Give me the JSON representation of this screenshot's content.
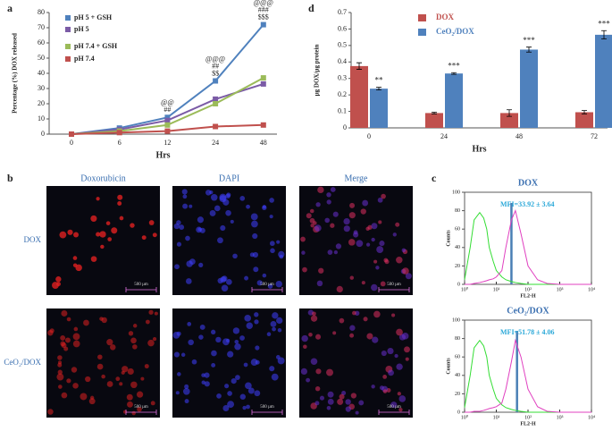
{
  "chart_data": [
    {
      "type": "line",
      "x_label": "Hrs",
      "y_label": "Percentage (%) DOX released",
      "categories": [
        "0",
        "6",
        "12",
        "24",
        "48"
      ],
      "series": [
        {
          "name": "pH 5 + GSH",
          "color": "#4f81bd",
          "values": [
            0,
            4,
            11,
            35,
            72
          ]
        },
        {
          "name": "pH 5",
          "color": "#7b5ba6",
          "values": [
            0,
            3,
            9,
            23,
            33
          ]
        },
        {
          "name": "pH  7.4 + GSH",
          "color": "#9bbb59",
          "values": [
            0,
            2,
            6,
            20,
            37
          ]
        },
        {
          "name": "pH 7.4",
          "color": "#c0504d",
          "values": [
            0,
            1,
            2,
            5,
            6
          ]
        }
      ],
      "annotations": [
        null,
        null,
        [
          "@@",
          "##"
        ],
        [
          "@@@",
          "##",
          "$$"
        ],
        [
          "@@@",
          "###",
          "$$$"
        ]
      ],
      "ylim": [
        0,
        80
      ],
      "yticks": [
        0,
        10,
        20,
        30,
        40,
        50,
        60,
        70,
        80
      ],
      "grid": false
    },
    {
      "type": "bar",
      "x_label": "Hrs",
      "y_label": "µg DOX/µg protein",
      "categories": [
        "0",
        "24",
        "48",
        "72"
      ],
      "series": [
        {
          "name": "DOX",
          "color": "#c0504d",
          "values": [
            0.375,
            0.09,
            0.09,
            0.095
          ],
          "errors": [
            0.02,
            0.005,
            0.02,
            0.01
          ]
        },
        {
          "name": "CeO₂/DOX",
          "color": "#4f81bd",
          "values": [
            0.238,
            0.33,
            0.475,
            0.565
          ],
          "errors": [
            0.008,
            0.005,
            0.015,
            0.025
          ]
        }
      ],
      "significance": [
        "**",
        "***",
        "***",
        "***"
      ],
      "ylim": [
        0,
        0.7
      ],
      "yticks": [
        0,
        0.1,
        0.2,
        0.3,
        0.4,
        0.5,
        0.6,
        0.7
      ],
      "grid": false
    },
    {
      "type": "line",
      "title": "DOX",
      "x_label": "FL2-H",
      "y_label": "Counts",
      "xscale": "log",
      "x": [
        1,
        1.5,
        2,
        3,
        4,
        5,
        6,
        8,
        10,
        15,
        20,
        30,
        40,
        60,
        100,
        200,
        400,
        1000,
        10000
      ],
      "series": [
        {
          "color": "#33dd33",
          "values": [
            5,
            40,
            70,
            78,
            72,
            60,
            40,
            25,
            15,
            8,
            5,
            3,
            2,
            1,
            0,
            0,
            0,
            0,
            0
          ]
        },
        {
          "color": "#e040c0",
          "values": [
            0,
            0,
            1,
            2,
            3,
            4,
            5,
            6,
            8,
            15,
            40,
            70,
            80,
            55,
            20,
            5,
            1,
            0,
            0
          ]
        }
      ],
      "marker": 30,
      "annotation": "MFI=33.92 ± 3.64",
      "xlim": [
        1,
        10000
      ],
      "xticks": [
        {
          "value": 1,
          "label": "10⁰"
        },
        {
          "value": 10,
          "label": "10¹"
        },
        {
          "value": 100,
          "label": "10²"
        },
        {
          "value": 1000,
          "label": "10³"
        },
        {
          "value": 10000,
          "label": "10⁴"
        }
      ],
      "ylim": [
        0,
        100
      ],
      "yticks": [
        0,
        20,
        40,
        60,
        80,
        100
      ]
    },
    {
      "type": "line",
      "title": "CeO₂/DOX",
      "x_label": "FL2-H",
      "y_label": "Counts",
      "xscale": "log",
      "x": [
        1,
        1.5,
        2,
        3,
        4,
        5,
        6,
        8,
        10,
        15,
        20,
        30,
        40,
        60,
        100,
        200,
        400,
        1000,
        10000
      ],
      "series": [
        {
          "color": "#33dd33",
          "values": [
            5,
            40,
            70,
            78,
            72,
            60,
            40,
            25,
            15,
            8,
            5,
            3,
            2,
            1,
            0,
            0,
            0,
            0,
            0
          ]
        },
        {
          "color": "#e040c0",
          "values": [
            0,
            0,
            1,
            1,
            2,
            3,
            4,
            5,
            6,
            10,
            25,
            55,
            78,
            60,
            25,
            6,
            1,
            0,
            0
          ]
        }
      ],
      "marker": 45,
      "annotation": "MFI=51.78 ± 4.06",
      "xlim": [
        1,
        10000
      ],
      "xticks": [
        {
          "value": 1,
          "label": "10⁰"
        },
        {
          "value": 10,
          "label": "10¹"
        },
        {
          "value": 100,
          "label": "10²"
        },
        {
          "value": 1000,
          "label": "10³"
        },
        {
          "value": 10000,
          "label": "10⁴"
        }
      ],
      "ylim": [
        0,
        100
      ],
      "yticks": [
        0,
        20,
        40,
        60,
        80,
        100
      ]
    }
  ],
  "figure": {
    "panel_labels": [
      "a",
      "d",
      "b",
      "c"
    ],
    "micrographs": {
      "columns": [
        "Doxorubicin",
        "DAPI",
        "Merge"
      ],
      "rows": [
        "DOX",
        "CeO₂/DOX"
      ],
      "scale_bar": "500 µm"
    }
  }
}
